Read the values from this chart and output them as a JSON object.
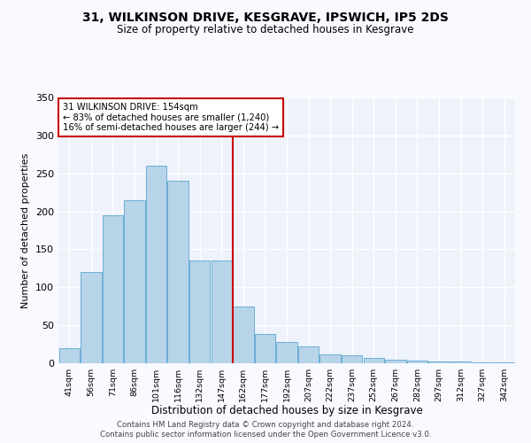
{
  "title": "31, WILKINSON DRIVE, KESGRAVE, IPSWICH, IP5 2DS",
  "subtitle": "Size of property relative to detached houses in Kesgrave",
  "xlabel": "Distribution of detached houses by size in Kesgrave",
  "ylabel": "Number of detached properties",
  "categories": [
    "41sqm",
    "56sqm",
    "71sqm",
    "86sqm",
    "101sqm",
    "116sqm",
    "132sqm",
    "147sqm",
    "162sqm",
    "177sqm",
    "192sqm",
    "207sqm",
    "222sqm",
    "237sqm",
    "252sqm",
    "267sqm",
    "282sqm",
    "297sqm",
    "312sqm",
    "327sqm",
    "342sqm"
  ],
  "values": [
    20,
    120,
    195,
    215,
    260,
    240,
    135,
    135,
    75,
    38,
    28,
    22,
    12,
    10,
    7,
    5,
    3,
    2,
    2,
    1,
    1
  ],
  "bar_color": "#b8d4e8",
  "bar_edge_color": "#6aaed6",
  "annotation_text": "31 WILKINSON DRIVE: 154sqm\n← 83% of detached houses are smaller (1,240)\n16% of semi-detached houses are larger (244) →",
  "annotation_box_color": "#ffffff",
  "annotation_box_edge": "#cc0000",
  "ylim": [
    0,
    350
  ],
  "yticks": [
    0,
    50,
    100,
    150,
    200,
    250,
    300,
    350
  ],
  "background_color": "#eef2fb",
  "grid_color": "#ffffff",
  "footer_line1": "Contains HM Land Registry data © Crown copyright and database right 2024.",
  "footer_line2": "Contains public sector information licensed under the Open Government Licence v3.0."
}
